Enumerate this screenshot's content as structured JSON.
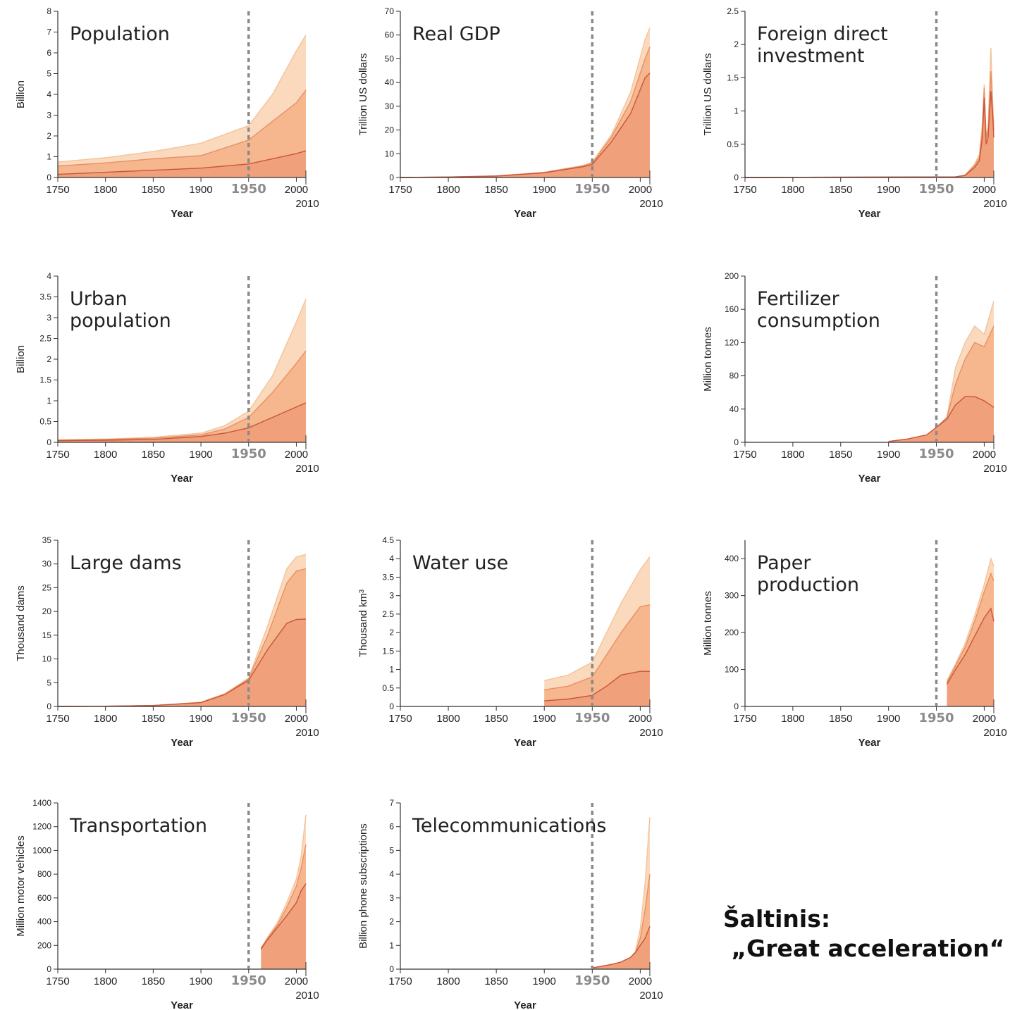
{
  "source": {
    "line1": "Šaltinis:",
    "line2": " „Great acceleration“"
  },
  "colors": {
    "layer_light": "#fbd9bc",
    "layer_mid": "#f6b68e",
    "layer_dark": "#f0a17c",
    "line_light": "#f3c39a",
    "line_mid": "#e98f64",
    "line_dark": "#c9553a",
    "axis": "#333333",
    "marker": "#8a8a8a"
  },
  "chart_data": [
    {
      "id": "population",
      "type": "area",
      "title": [
        "Population"
      ],
      "ylabel": "Billion",
      "xlabel": "Year",
      "x_ticks": [
        "1750",
        "1800",
        "1850",
        "1900",
        "1950",
        "2000"
      ],
      "end_label": "2010",
      "marker_year": 1950,
      "ylim": [
        0,
        8
      ],
      "y_ticks": [
        "0",
        "1",
        "2",
        "3",
        "4",
        "5",
        "6",
        "7",
        "8"
      ],
      "x": [
        1750,
        1800,
        1850,
        1900,
        1950,
        1975,
        2000,
        2010
      ],
      "series": [
        {
          "values": [
            0.15,
            0.25,
            0.35,
            0.45,
            0.65,
            0.9,
            1.15,
            1.28
          ]
        },
        {
          "values": [
            0.55,
            0.7,
            0.9,
            1.05,
            1.8,
            2.7,
            3.6,
            4.2
          ]
        },
        {
          "values": [
            0.75,
            0.95,
            1.25,
            1.65,
            2.5,
            4.0,
            6.1,
            6.85
          ]
        }
      ]
    },
    {
      "id": "real-gdp",
      "type": "area",
      "title": [
        "Real GDP"
      ],
      "ylabel": "Trillion US dollars",
      "xlabel": "Year",
      "x_ticks": [
        "1750",
        "1800",
        "1850",
        "1900",
        "1950",
        "2000"
      ],
      "end_label": "2010",
      "marker_year": 1950,
      "ylim": [
        0,
        70
      ],
      "y_ticks": [
        "0",
        "10",
        "20",
        "30",
        "40",
        "50",
        "60",
        "70"
      ],
      "x": [
        1750,
        1800,
        1850,
        1900,
        1940,
        1950,
        1970,
        1990,
        2005,
        2010
      ],
      "series": [
        {
          "values": [
            0,
            0.2,
            0.6,
            2.0,
            4.5,
            5.5,
            15,
            27,
            42,
            44
          ]
        },
        {
          "values": [
            0,
            0.2,
            0.6,
            2.1,
            4.8,
            6,
            17,
            32,
            50,
            55
          ]
        },
        {
          "values": [
            0,
            0.2,
            0.7,
            2.2,
            5,
            6.5,
            18,
            36,
            58,
            63
          ]
        }
      ]
    },
    {
      "id": "foreign-direct-investment",
      "type": "area",
      "title": [
        "Foreign direct",
        "investment"
      ],
      "ylabel": "Trillion US dollars",
      "xlabel": "Year",
      "x_ticks": [
        "1750",
        "1800",
        "1850",
        "1900",
        "1950",
        "2000"
      ],
      "end_label": "2010",
      "marker_year": 1950,
      "ylim": [
        0,
        2.5
      ],
      "y_ticks": [
        "0",
        "0.5",
        "1",
        "1.5",
        "2",
        "2.5"
      ],
      "x": [
        1750,
        1970,
        1980,
        1990,
        1995,
        1998,
        2000,
        2002,
        2004,
        2007,
        2009,
        2010
      ],
      "series": [
        {
          "values": [
            0,
            0.01,
            0.03,
            0.15,
            0.25,
            0.6,
            1.2,
            0.5,
            0.6,
            1.3,
            0.9,
            0.6
          ]
        },
        {
          "values": [
            0,
            0.01,
            0.03,
            0.18,
            0.3,
            0.7,
            1.35,
            0.6,
            0.7,
            1.6,
            1.0,
            0.7
          ]
        },
        {
          "values": [
            0,
            0.01,
            0.04,
            0.2,
            0.35,
            0.8,
            1.4,
            0.65,
            0.75,
            1.95,
            1.1,
            0.8
          ]
        }
      ]
    },
    {
      "id": "urban-population",
      "type": "area",
      "title": [
        "Urban",
        "population"
      ],
      "ylabel": "Billion",
      "xlabel": "Year",
      "x_ticks": [
        "1750",
        "1800",
        "1850",
        "1900",
        "1950",
        "2000"
      ],
      "end_label": "2010",
      "marker_year": 1950,
      "ylim": [
        0,
        4
      ],
      "y_ticks": [
        "0",
        "0.5",
        "1",
        "1.5",
        "2",
        "2.5",
        "3",
        "3.5",
        "4"
      ],
      "x": [
        1750,
        1800,
        1850,
        1900,
        1925,
        1950,
        1975,
        2000,
        2010
      ],
      "series": [
        {
          "values": [
            0.04,
            0.05,
            0.07,
            0.14,
            0.22,
            0.35,
            0.6,
            0.85,
            0.95
          ]
        },
        {
          "values": [
            0.05,
            0.07,
            0.1,
            0.18,
            0.32,
            0.6,
            1.2,
            1.9,
            2.2
          ]
        },
        {
          "values": [
            0.06,
            0.08,
            0.12,
            0.22,
            0.4,
            0.75,
            1.6,
            2.9,
            3.45
          ]
        }
      ]
    },
    {
      "id": "fertilizer-consumption",
      "type": "area",
      "title": [
        "Fertilizer",
        "consumption"
      ],
      "ylabel": "Million tonnes",
      "xlabel": "Year",
      "x_ticks": [
        "1750",
        "1800",
        "1850",
        "1900",
        "1950",
        "2000"
      ],
      "end_label": "2010",
      "marker_year": 1950,
      "ylim": [
        0,
        200
      ],
      "y_ticks": [
        "0",
        "40",
        "80",
        "120",
        "160",
        "200"
      ],
      "x": [
        1900,
        1920,
        1940,
        1950,
        1961,
        1970,
        1980,
        1990,
        2000,
        2010
      ],
      "series": [
        {
          "values": [
            1,
            4,
            9,
            18,
            28,
            45,
            55,
            55,
            50,
            42
          ]
        },
        {
          "values": [
            1,
            4,
            9,
            18,
            30,
            70,
            100,
            120,
            115,
            140
          ]
        },
        {
          "values": [
            1,
            4,
            9,
            18,
            30,
            90,
            120,
            140,
            130,
            170
          ]
        }
      ]
    },
    {
      "id": "large-dams",
      "type": "area",
      "title": [
        "Large dams"
      ],
      "ylabel": "Thousand dams",
      "xlabel": "Year",
      "x_ticks": [
        "1750",
        "1800",
        "1850",
        "1900",
        "1950",
        "2000"
      ],
      "end_label": "2010",
      "marker_year": 1950,
      "ylim": [
        0,
        35
      ],
      "y_ticks": [
        "0",
        "5",
        "10",
        "15",
        "20",
        "25",
        "30",
        "35"
      ],
      "x": [
        1750,
        1800,
        1850,
        1900,
        1925,
        1950,
        1970,
        1990,
        2000,
        2010
      ],
      "series": [
        {
          "values": [
            0,
            0.05,
            0.2,
            0.8,
            2.5,
            5.5,
            12,
            17.5,
            18.3,
            18.4
          ]
        },
        {
          "values": [
            0,
            0.05,
            0.2,
            0.8,
            2.5,
            5.8,
            15,
            26,
            28.5,
            29
          ]
        },
        {
          "values": [
            0,
            0.05,
            0.2,
            0.9,
            2.7,
            6,
            17,
            29,
            31.5,
            32
          ]
        }
      ]
    },
    {
      "id": "water-use",
      "type": "area",
      "title": [
        "Water use"
      ],
      "ylabel": "Thousand km³",
      "xlabel": "Year",
      "x_ticks": [
        "1750",
        "1800",
        "1850",
        "1900",
        "1950",
        "2000"
      ],
      "end_label": "2010",
      "marker_year": 1950,
      "ylim": [
        0,
        4.5
      ],
      "y_ticks": [
        "0",
        "0.5",
        "1",
        "1.5",
        "2",
        "2.5",
        "3",
        "3.5",
        "4",
        "4.5"
      ],
      "x": [
        1900,
        1925,
        1950,
        1965,
        1980,
        2000,
        2010
      ],
      "series": [
        {
          "values": [
            0.15,
            0.2,
            0.3,
            0.55,
            0.85,
            0.95,
            0.95
          ]
        },
        {
          "values": [
            0.45,
            0.55,
            0.8,
            1.4,
            2.0,
            2.7,
            2.75
          ]
        },
        {
          "values": [
            0.7,
            0.85,
            1.2,
            2.0,
            2.8,
            3.7,
            4.05
          ]
        }
      ]
    },
    {
      "id": "paper-production",
      "type": "area",
      "title": [
        "Paper",
        "production"
      ],
      "ylabel": "Million tonnes",
      "xlabel": "Year",
      "x_ticks": [
        "1750",
        "1800",
        "1850",
        "1900",
        "1950",
        "2000"
      ],
      "end_label": "2010",
      "marker_year": 1950,
      "ylim": [
        0,
        450
      ],
      "y_ticks": [
        "0",
        "100",
        "200",
        "300",
        "400"
      ],
      "x": [
        1961,
        1970,
        1980,
        1990,
        2000,
        2007,
        2010
      ],
      "series": [
        {
          "values": [
            60,
            100,
            140,
            190,
            240,
            265,
            230
          ]
        },
        {
          "values": [
            65,
            110,
            160,
            230,
            310,
            360,
            340
          ]
        },
        {
          "values": [
            70,
            115,
            170,
            245,
            330,
            400,
            380
          ]
        }
      ]
    },
    {
      "id": "transportation",
      "type": "area",
      "title": [
        "Transportation"
      ],
      "ylabel": "Million motor vehicles",
      "xlabel": "Year",
      "x_ticks": [
        "1750",
        "1800",
        "1850",
        "1900",
        "1950",
        "2000"
      ],
      "end_label": "2010",
      "marker_year": 1950,
      "ylim": [
        0,
        1400
      ],
      "y_ticks": [
        "0",
        "200",
        "400",
        "600",
        "800",
        "1000",
        "1200",
        "1400"
      ],
      "x": [
        1963,
        1970,
        1980,
        1990,
        2000,
        2005,
        2010
      ],
      "series": [
        {
          "values": [
            170,
            250,
            350,
            450,
            560,
            660,
            720
          ]
        },
        {
          "values": [
            175,
            260,
            370,
            520,
            700,
            850,
            1050
          ]
        },
        {
          "values": [
            180,
            270,
            390,
            560,
            760,
            950,
            1300
          ]
        }
      ]
    },
    {
      "id": "telecommunications",
      "type": "area",
      "title": [
        "Telecommunications"
      ],
      "ylabel": "Billion phone subscriptions",
      "xlabel": "Year",
      "x_ticks": [
        "1750",
        "1800",
        "1850",
        "1900",
        "1950",
        "2000"
      ],
      "end_label": "2010",
      "marker_year": 1950,
      "ylim": [
        0,
        7
      ],
      "y_ticks": [
        "0",
        "1",
        "2",
        "3",
        "4",
        "5",
        "6",
        "7"
      ],
      "x": [
        1950,
        1970,
        1980,
        1990,
        1995,
        2000,
        2005,
        2010
      ],
      "series": [
        {
          "values": [
            0.05,
            0.2,
            0.3,
            0.5,
            0.7,
            1.0,
            1.3,
            1.8
          ]
        },
        {
          "values": [
            0.05,
            0.2,
            0.3,
            0.5,
            0.7,
            1.3,
            2.5,
            4.0
          ]
        },
        {
          "values": [
            0.05,
            0.2,
            0.3,
            0.5,
            0.75,
            1.7,
            3.6,
            6.4
          ]
        }
      ]
    }
  ]
}
